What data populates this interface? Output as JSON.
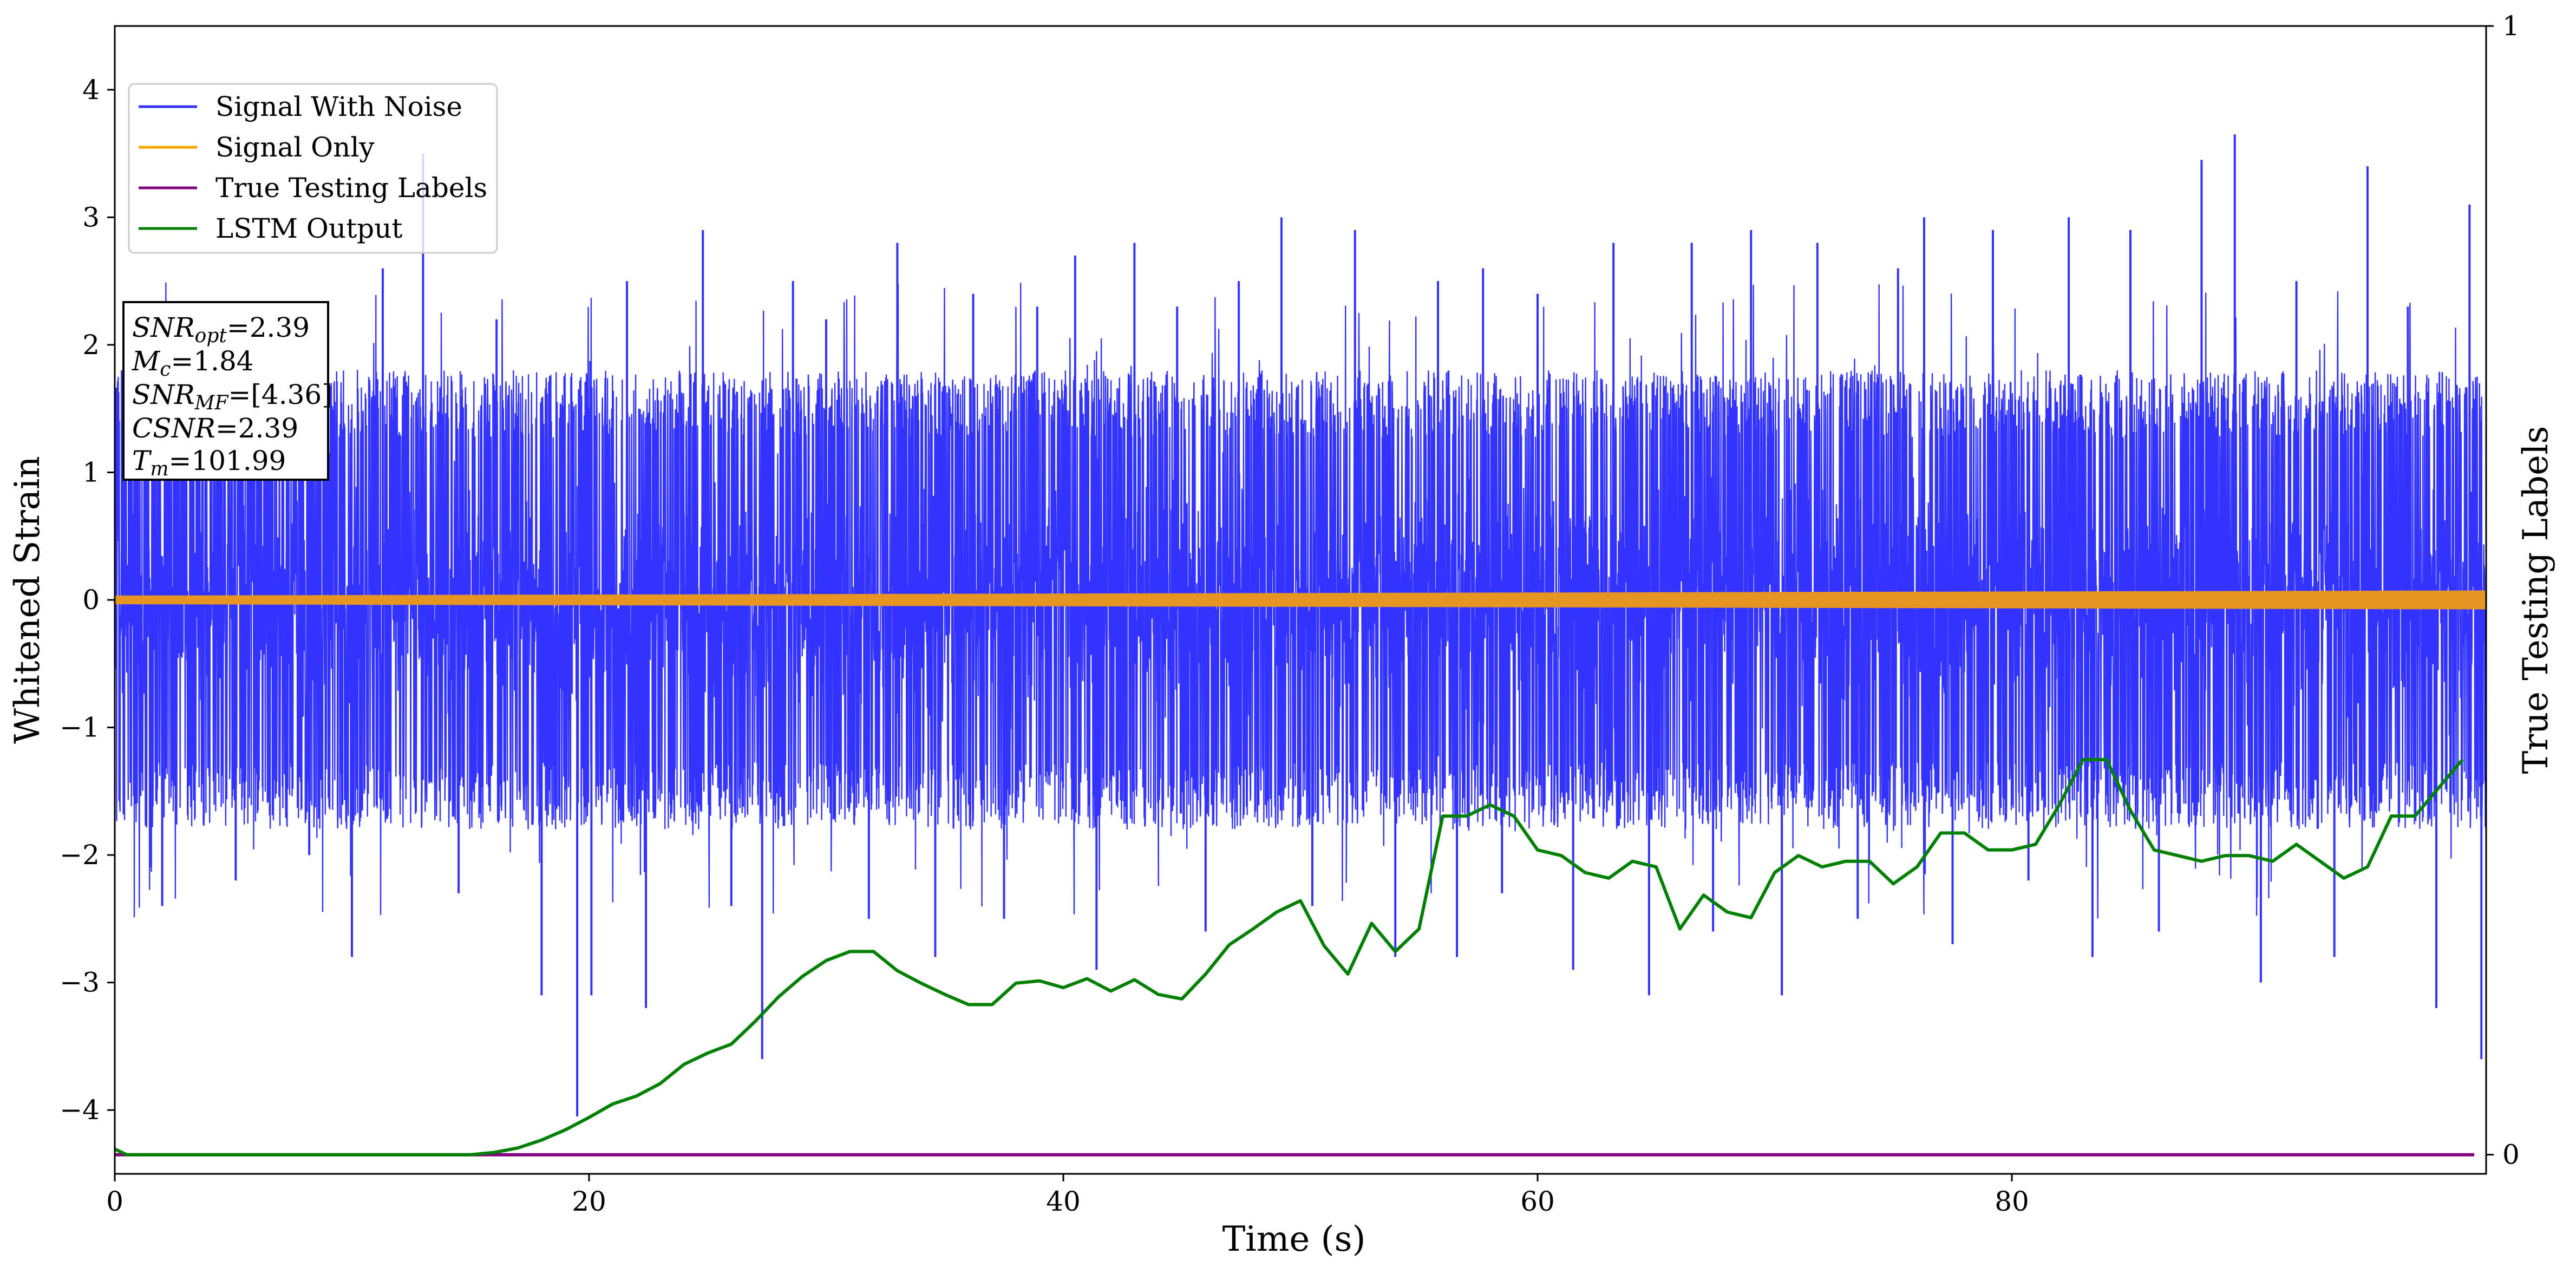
{
  "chart_data": {
    "type": "line",
    "xlabel": "Time (s)",
    "ylabel": "Whitened Strain",
    "y2label": "True Testing Labels",
    "xlim": [
      0,
      100
    ],
    "ylim": [
      -4.5,
      4.5
    ],
    "y2lim": [
      0,
      1
    ],
    "xticks": [
      0,
      20,
      40,
      60,
      80
    ],
    "yticks": [
      -4,
      -3,
      -2,
      -1,
      0,
      1,
      2,
      3,
      4
    ],
    "y2ticks": [
      0,
      1
    ],
    "grid": false,
    "legend_position": "upper-left",
    "series": [
      {
        "name": "Signal With Noise",
        "color": "#3333ff",
        "kind": "noise",
        "typical_range": [
          -1.5,
          1.5
        ],
        "peaks": [
          [
            0.3,
            1.8
          ],
          [
            2.0,
            -2.4
          ],
          [
            3.5,
            2.3
          ],
          [
            5.1,
            -2.2
          ],
          [
            6.4,
            2.1
          ],
          [
            8.2,
            -2.0
          ],
          [
            10.0,
            -2.8
          ],
          [
            11.3,
            2.6
          ],
          [
            13.0,
            3.5
          ],
          [
            14.5,
            -2.3
          ],
          [
            16.1,
            2.2
          ],
          [
            18.0,
            -3.1
          ],
          [
            19.5,
            -4.05
          ],
          [
            20.1,
            -3.1
          ],
          [
            21.6,
            2.5
          ],
          [
            22.4,
            -3.2
          ],
          [
            24.8,
            2.9
          ],
          [
            26.0,
            -2.4
          ],
          [
            27.3,
            -3.6
          ],
          [
            28.6,
            2.5
          ],
          [
            30.0,
            2.2
          ],
          [
            31.8,
            -2.5
          ],
          [
            33.0,
            2.8
          ],
          [
            34.6,
            -2.8
          ],
          [
            36.2,
            2.4
          ],
          [
            37.5,
            -2.5
          ],
          [
            38.9,
            2.3
          ],
          [
            40.5,
            2.7
          ],
          [
            41.4,
            -2.9
          ],
          [
            43.0,
            2.8
          ],
          [
            44.8,
            2.3
          ],
          [
            46.0,
            -2.6
          ],
          [
            47.4,
            2.5
          ],
          [
            49.2,
            3.0
          ],
          [
            50.5,
            -2.4
          ],
          [
            52.3,
            2.9
          ],
          [
            54.0,
            -2.8
          ],
          [
            55.8,
            2.5
          ],
          [
            56.6,
            -2.8
          ],
          [
            57.7,
            2.6
          ],
          [
            58.5,
            -2.3
          ],
          [
            60.0,
            2.4
          ],
          [
            61.5,
            -2.9
          ],
          [
            63.2,
            2.8
          ],
          [
            64.7,
            -3.1
          ],
          [
            66.5,
            2.8
          ],
          [
            67.4,
            -2.6
          ],
          [
            69.0,
            2.9
          ],
          [
            70.3,
            -3.1
          ],
          [
            71.8,
            2.8
          ],
          [
            73.5,
            -2.5
          ],
          [
            75.2,
            2.6
          ],
          [
            76.3,
            3.0
          ],
          [
            77.5,
            -2.7
          ],
          [
            79.2,
            2.9
          ],
          [
            80.7,
            -2.2
          ],
          [
            82.4,
            3.0
          ],
          [
            83.4,
            -2.8
          ],
          [
            85.0,
            2.9
          ],
          [
            86.2,
            -2.6
          ],
          [
            88.0,
            3.45
          ],
          [
            89.4,
            3.65
          ],
          [
            90.5,
            -3.0
          ],
          [
            92.0,
            2.5
          ],
          [
            93.6,
            -2.8
          ],
          [
            95.0,
            3.4
          ],
          [
            96.7,
            2.3
          ],
          [
            97.9,
            -3.2
          ],
          [
            99.3,
            3.1
          ],
          [
            99.8,
            -3.6
          ]
        ]
      },
      {
        "name": "Signal Only",
        "color": "#e69523",
        "kind": "band",
        "amplitude_start": 0.03,
        "amplitude_end": 0.07
      },
      {
        "name": "True Testing Labels",
        "color": "#800080",
        "kind": "line",
        "axis": "y2",
        "x": [
          0,
          99.5
        ],
        "y": [
          0,
          0
        ]
      },
      {
        "name": "LSTM Output",
        "color": "#008000",
        "kind": "line",
        "axis": "y2",
        "x": [
          0,
          0.5,
          2,
          5,
          10,
          15,
          16,
          17,
          18,
          19,
          20,
          21,
          22,
          23,
          24,
          25,
          26,
          27,
          28,
          29,
          30,
          31,
          32,
          33,
          34,
          35,
          36,
          37,
          38,
          39,
          40,
          41,
          42,
          43,
          44,
          45,
          46,
          47,
          48,
          49,
          50,
          51,
          52,
          53,
          54,
          55,
          56,
          57,
          58,
          59,
          60,
          61,
          62,
          63,
          64,
          65,
          66,
          67,
          68,
          69,
          70,
          71,
          72,
          73,
          74,
          75,
          76,
          77,
          78,
          79,
          80,
          81,
          82,
          83,
          84,
          85,
          86,
          87,
          88,
          89,
          90,
          91,
          92,
          93,
          94,
          95,
          96,
          97,
          98,
          99
        ],
        "y": [
          0.005,
          0.0,
          0.0,
          0.0,
          0.0,
          0.0,
          0.002,
          0.006,
          0.013,
          0.022,
          0.033,
          0.045,
          0.052,
          0.063,
          0.08,
          0.09,
          0.098,
          0.118,
          0.14,
          0.158,
          0.172,
          0.18,
          0.18,
          0.163,
          0.152,
          0.142,
          0.133,
          0.133,
          0.152,
          0.154,
          0.148,
          0.156,
          0.145,
          0.155,
          0.142,
          0.138,
          0.16,
          0.186,
          0.2,
          0.215,
          0.225,
          0.185,
          0.16,
          0.205,
          0.18,
          0.2,
          0.3,
          0.3,
          0.31,
          0.3,
          0.27,
          0.265,
          0.25,
          0.245,
          0.26,
          0.255,
          0.2,
          0.23,
          0.215,
          0.21,
          0.25,
          0.265,
          0.255,
          0.26,
          0.26,
          0.24,
          0.255,
          0.285,
          0.285,
          0.27,
          0.27,
          0.275,
          0.31,
          0.35,
          0.35,
          0.305,
          0.27,
          0.265,
          0.26,
          0.265,
          0.265,
          0.26,
          0.275,
          0.26,
          0.245,
          0.255,
          0.3,
          0.3,
          0.325,
          0.35
        ]
      }
    ]
  },
  "legend": {
    "items": [
      {
        "label": "Signal With Noise",
        "color": "#3333ff"
      },
      {
        "label": "Signal Only",
        "color": "#ffa500"
      },
      {
        "label": "True Testing Labels",
        "color": "#800080"
      },
      {
        "label": "LSTM Output",
        "color": "#008000"
      }
    ]
  },
  "info_box": {
    "snr_opt_sym": "SNR",
    "snr_opt_sub": "opt",
    "snr_opt_value": "=2.39",
    "mc_sym": "M",
    "mc_sub": "c",
    "mc_value": "=1.84",
    "snr_mf_sym": "SNR",
    "snr_mf_sub": "MF",
    "snr_mf_value": "=[4.36]",
    "csnr_sym": "CSNR",
    "csnr_value": "=2.39",
    "tm_sym": "T",
    "tm_sub": "m",
    "tm_value": "=101.99"
  }
}
